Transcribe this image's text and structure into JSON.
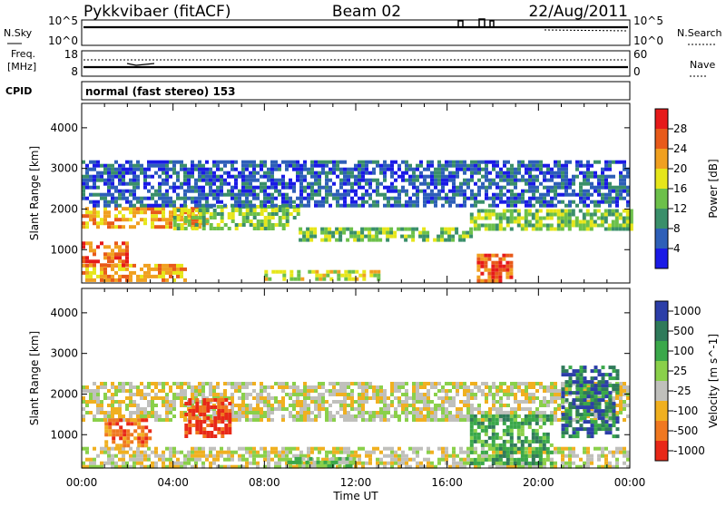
{
  "header": {
    "title": "Pykkvibaer (fitACF)",
    "beam": "Beam 02",
    "date": "22/Aug/2011"
  },
  "summary_panels": {
    "nsky_label": "N.Sky",
    "nsky_ticks": [
      "10^5",
      "10^0"
    ],
    "nsearch_label": "N.Search",
    "nsearch_ticks": [
      "10^5",
      "10^0"
    ],
    "freq_label_1": "Freq.",
    "freq_label_2": "[MHz]",
    "freq_ticks": [
      "18",
      "8"
    ],
    "nave_label": "Nave",
    "nave_ticks": [
      "60",
      "0"
    ],
    "cpid_label": "CPID",
    "cpid_text": "normal (fast stereo) 153"
  },
  "chart_data": [
    {
      "type": "heatmap",
      "name": "power-panel",
      "ylabel": "Slant Range [km]",
      "ylim": [
        180,
        4600
      ],
      "yticks": [
        "1000",
        "2000",
        "3000",
        "4000"
      ],
      "xlim_hours": [
        0,
        24
      ],
      "colorbar_label": "Power [dB]",
      "colorbar_ticks": [
        "4",
        "8",
        "12",
        "16",
        "20",
        "24",
        "28"
      ],
      "colors": [
        "#1a1ae6",
        "#2e5fb8",
        "#3a8f6a",
        "#6cc04a",
        "#e6e61a",
        "#f0a020",
        "#e85a1a",
        "#e61a1a"
      ],
      "features": [
        {
          "t0": 0.0,
          "t1": 5.5,
          "r0": 1550,
          "r1": 2050,
          "level": 5
        },
        {
          "t0": 4.0,
          "t1": 9.5,
          "r0": 1500,
          "r1": 2100,
          "level": 3
        },
        {
          "t0": 9.5,
          "t1": 17.0,
          "r0": 1250,
          "r1": 1550,
          "level": 3
        },
        {
          "t0": 17.0,
          "t1": 24.0,
          "r0": 1500,
          "r1": 2000,
          "level": 3
        },
        {
          "t0": 0.0,
          "t1": 4.5,
          "r0": 250,
          "r1": 650,
          "level": 5
        },
        {
          "t0": 8.0,
          "t1": 13.0,
          "r0": 250,
          "r1": 500,
          "level": 4
        },
        {
          "t0": 17.3,
          "t1": 18.8,
          "r0": 250,
          "r1": 900,
          "level": 6
        },
        {
          "t0": 0.0,
          "t1": 24.0,
          "r0": 2100,
          "r1": 3200,
          "level": 1
        },
        {
          "t0": 0.0,
          "t1": 2.0,
          "r0": 600,
          "r1": 1200,
          "level": 6
        }
      ]
    },
    {
      "type": "heatmap",
      "name": "velocity-panel",
      "ylabel": "Slant Range [km]",
      "ylim": [
        180,
        4600
      ],
      "yticks": [
        "1000",
        "2000",
        "3000",
        "4000"
      ],
      "xlim_hours": [
        0,
        24
      ],
      "colorbar_label": "Velocity [m s^-1]",
      "colorbar_ticks": [
        "1000",
        "500",
        "100",
        "25",
        "-25",
        "-100",
        "-500",
        "-1000"
      ],
      "colors": [
        "#2c3ea8",
        "#2f7a5a",
        "#3aa84a",
        "#8ad04a",
        "#c0c0bc",
        "#f0b020",
        "#f07820",
        "#e82818"
      ],
      "features": [
        {
          "t0": 0.0,
          "t1": 24.0,
          "r0": 1350,
          "r1": 2300,
          "level": 4
        },
        {
          "t0": 0.0,
          "t1": 24.0,
          "r0": 200,
          "r1": 700,
          "level": 4
        },
        {
          "t0": 4.5,
          "t1": 6.5,
          "r0": 1000,
          "r1": 1900,
          "level": 7
        },
        {
          "t0": 1.0,
          "t1": 3.0,
          "r0": 700,
          "r1": 1400,
          "level": 6
        },
        {
          "t0": 9.0,
          "t1": 12.0,
          "r0": 250,
          "r1": 450,
          "level": 3
        },
        {
          "t0": 17.0,
          "t1": 20.5,
          "r0": 300,
          "r1": 1500,
          "level": 2
        },
        {
          "t0": 21.0,
          "t1": 23.5,
          "r0": 1000,
          "r1": 2700,
          "level": 1
        }
      ]
    }
  ],
  "x_axis": {
    "ticks": [
      "00:00",
      "04:00",
      "08:00",
      "12:00",
      "16:00",
      "20:00",
      "00:00"
    ],
    "label": "Time UT"
  }
}
